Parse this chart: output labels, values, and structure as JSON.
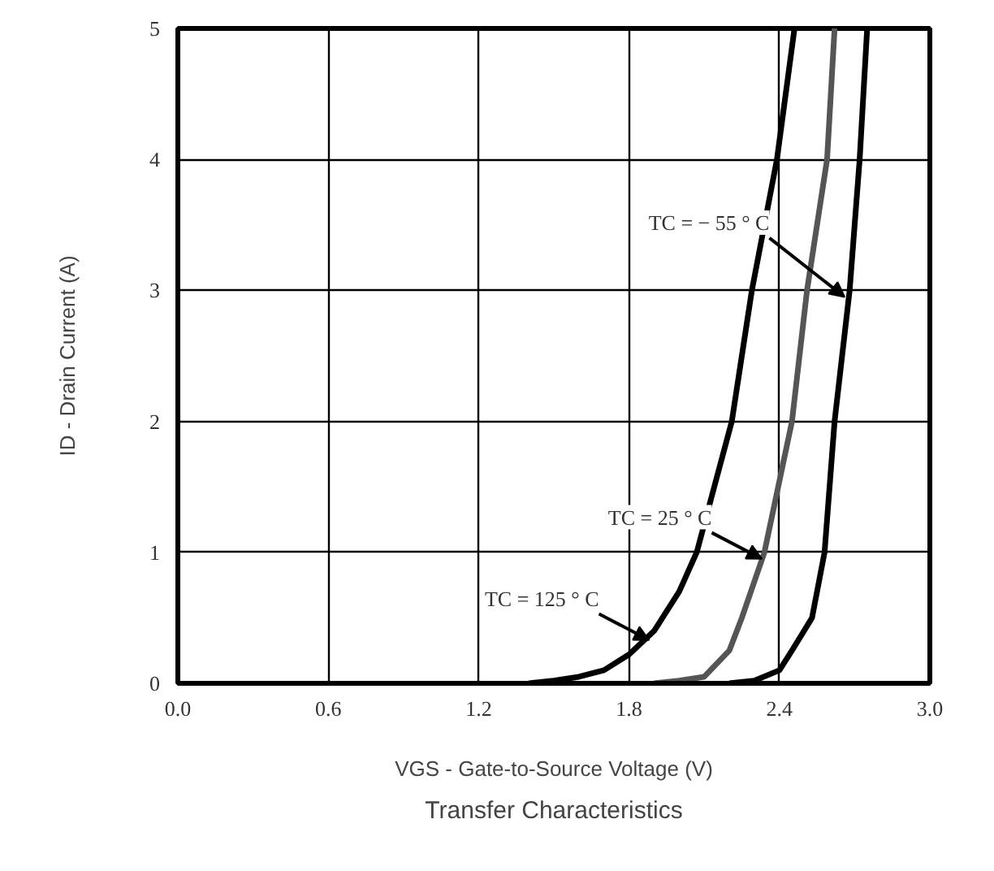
{
  "chart_data": {
    "type": "line",
    "title": "Transfer Characteristics",
    "xlabel": "VGS - Gate-to-Source Voltage (V)",
    "ylabel": "ID - Drain Current (A)",
    "series": [
      {
        "color": "#000000",
        "x": [
          1.4,
          1.5,
          1.6,
          1.7,
          1.8,
          1.9,
          2.0,
          2.07,
          2.14,
          2.21,
          2.29,
          2.39,
          2.46
        ],
        "values": [
          0,
          0.02,
          0.05,
          0.1,
          0.22,
          0.4,
          0.7,
          1,
          1.5,
          2,
          3,
          4,
          5
        ]
      },
      {
        "color": "#555555",
        "x": [
          1.9,
          2.0,
          2.1,
          2.2,
          2.25,
          2.34,
          2.45,
          2.51,
          2.59,
          2.62
        ],
        "values": [
          0,
          0.02,
          0.05,
          0.25,
          0.5,
          1,
          2,
          3,
          4,
          5
        ]
      },
      {
        "color": "#000000",
        "x": [
          2.2,
          2.3,
          2.4,
          2.45,
          2.53,
          2.58,
          2.62,
          2.68,
          2.72,
          2.75
        ],
        "values": [
          0,
          0.02,
          0.1,
          0.25,
          0.5,
          1,
          2,
          3,
          4,
          5
        ]
      }
    ],
    "annotations": [
      {
        "text": "TC = − 55 ° C",
        "x": 2.66,
        "y": 2.95
      },
      {
        "text": "TC = 25 ° C",
        "x": 2.33,
        "y": 0.95
      },
      {
        "text": "TC = 125 ° C",
        "x": 1.88,
        "y": 0.33
      }
    ],
    "xlim": [
      0,
      3
    ],
    "ylim": [
      0,
      5
    ],
    "xticks": [
      {
        "value": 0,
        "label": "0.0"
      },
      0.6,
      1.2,
      1.8,
      2.4,
      {
        "value": 3,
        "label": "3.0"
      }
    ],
    "yticks": [
      0,
      1,
      2,
      3,
      4,
      5
    ],
    "grid": true,
    "marker": "none",
    "line_style": "solid"
  }
}
